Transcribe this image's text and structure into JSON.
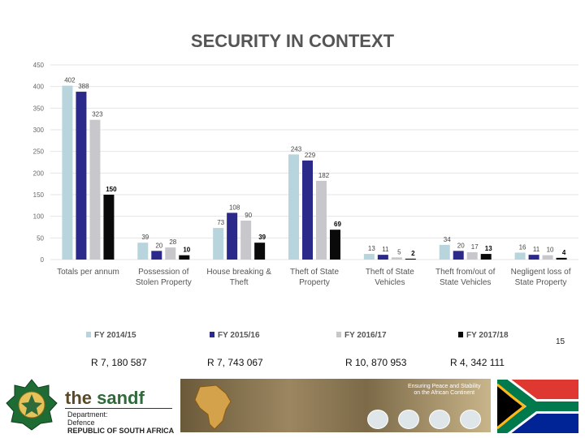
{
  "title": "SECURITY IN CONTEXT",
  "page_number": "15",
  "costs": [
    "R 7, 180 587",
    "R 7, 743 067",
    "R 10, 870 953",
    "R 4, 342 111"
  ],
  "footer": {
    "logo_the": "the ",
    "logo_name": "sandf",
    "dept_line1": "Department:",
    "dept_line2": "Defence",
    "dept_line3": "REPUBLIC OF SOUTH AFRICA",
    "motto_line1": "Ensuring Peace and Stability",
    "motto_line2": "on the African Continent"
  },
  "colors": {
    "fy2014": "#b8d4dc",
    "fy2015": "#2b2a8a",
    "fy2016": "#c8c8cc",
    "fy2017": "#0a0a0a",
    "grid": "#e4e4e4",
    "axis_text": "#666666"
  },
  "chart_data": {
    "type": "bar",
    "title": "SECURITY IN CONTEXT",
    "categories": [
      [
        "Totals per annum"
      ],
      [
        "Possession of",
        "Stolen Property"
      ],
      [
        "House breaking &",
        "Theft"
      ],
      [
        "Theft of State",
        "Property"
      ],
      [
        "Theft of State",
        "Vehicles"
      ],
      [
        "Theft from/out of",
        "State Vehicles"
      ],
      [
        "Negligent loss of",
        "State Property"
      ]
    ],
    "series": [
      {
        "name": "FY 2014/15",
        "values": [
          402,
          39,
          73,
          243,
          13,
          34,
          16
        ]
      },
      {
        "name": "FY 2015/16",
        "values": [
          388,
          20,
          108,
          229,
          11,
          20,
          11
        ]
      },
      {
        "name": "FY 2016/17",
        "values": [
          323,
          28,
          90,
          182,
          5,
          17,
          10
        ]
      },
      {
        "name": "FY 2017/18",
        "values": [
          150,
          10,
          39,
          69,
          2,
          13,
          4
        ]
      }
    ],
    "yticks": [
      0,
      50,
      100,
      150,
      200,
      250,
      300,
      350,
      400,
      450
    ],
    "ylim": [
      0,
      450
    ],
    "grid": true,
    "legend_position": "bottom",
    "xlabel": "",
    "ylabel": ""
  }
}
